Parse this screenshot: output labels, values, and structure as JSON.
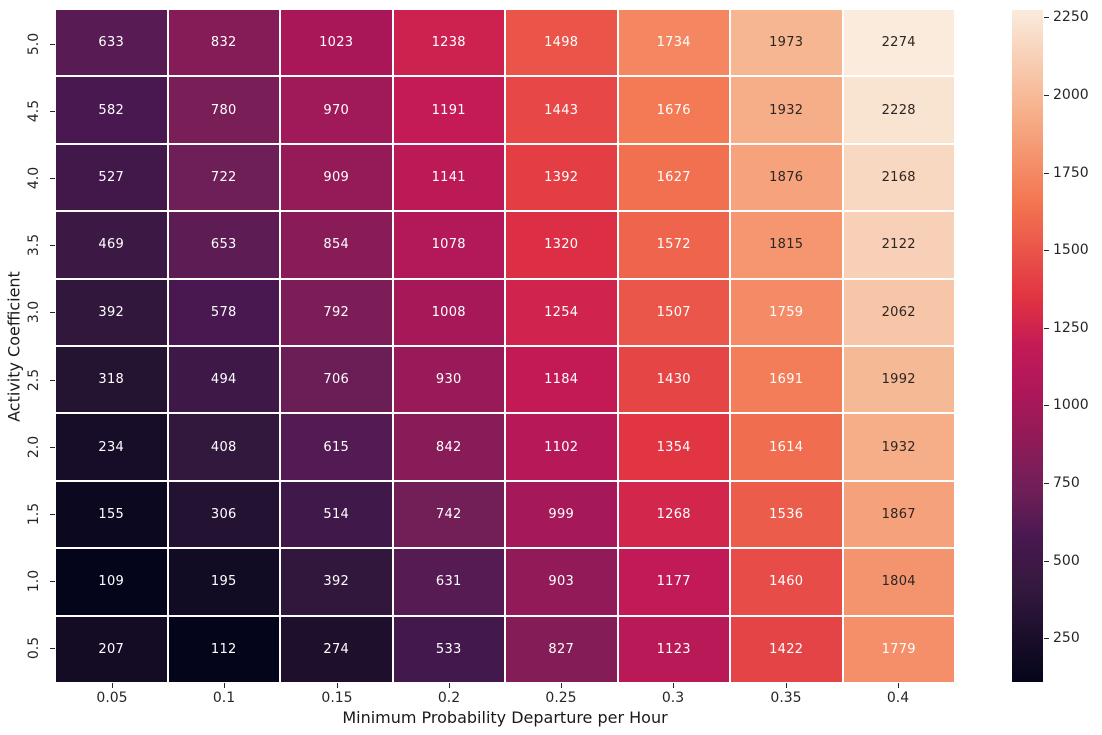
{
  "chart_data": {
    "type": "heatmap",
    "title": "",
    "xlabel": "Minimum Probability Departure per Hour",
    "ylabel": "Activity Coefficient",
    "x_categories": [
      "0.05",
      "0.1",
      "0.15",
      "0.2",
      "0.25",
      "0.3",
      "0.35",
      "0.4"
    ],
    "y_categories": [
      "5.0",
      "4.5",
      "4.0",
      "3.5",
      "3.0",
      "2.5",
      "2.0",
      "1.5",
      "1.0",
      "0.5"
    ],
    "values": [
      [
        633,
        832,
        1023,
        1238,
        1498,
        1734,
        1973,
        2274
      ],
      [
        582,
        780,
        970,
        1191,
        1443,
        1676,
        1932,
        2228
      ],
      [
        527,
        722,
        909,
        1141,
        1392,
        1627,
        1876,
        2168
      ],
      [
        469,
        653,
        854,
        1078,
        1320,
        1572,
        1815,
        2122
      ],
      [
        392,
        578,
        792,
        1008,
        1254,
        1507,
        1759,
        2062
      ],
      [
        318,
        494,
        706,
        930,
        1184,
        1430,
        1691,
        1992
      ],
      [
        234,
        408,
        615,
        842,
        1102,
        1354,
        1614,
        1932
      ],
      [
        155,
        306,
        514,
        742,
        999,
        1268,
        1536,
        1867
      ],
      [
        109,
        195,
        392,
        631,
        903,
        1177,
        1460,
        1804
      ],
      [
        207,
        112,
        274,
        533,
        827,
        1123,
        1422,
        1779
      ]
    ],
    "vmin": 109,
    "vmax": 2274,
    "colormap": "rocket",
    "colormap_stops": [
      {
        "v": 109,
        "c": "#04051A"
      },
      {
        "v": 418,
        "c": "#35193E"
      },
      {
        "v": 573,
        "c": "#481851"
      },
      {
        "v": 727,
        "c": "#701F57"
      },
      {
        "v": 1038,
        "c": "#AD1759"
      },
      {
        "v": 1192,
        "c": "#C41A56"
      },
      {
        "v": 1345,
        "c": "#E13342"
      },
      {
        "v": 1655,
        "c": "#F37651"
      },
      {
        "v": 1964,
        "c": "#F6B48F"
      },
      {
        "v": 2274,
        "c": "#FAEBDD"
      }
    ],
    "colorbar_ticks": [
      250,
      500,
      750,
      1000,
      1250,
      1500,
      1750,
      2000,
      2250
    ],
    "annotation_dark_threshold": 1790,
    "annotation_light_color": "#FFFFFF",
    "annotation_dark_color": "#2B2622",
    "grid_line_color": "#FFFFFF",
    "legend_position": "right-colorbar",
    "grid": "white-cell-separators"
  }
}
